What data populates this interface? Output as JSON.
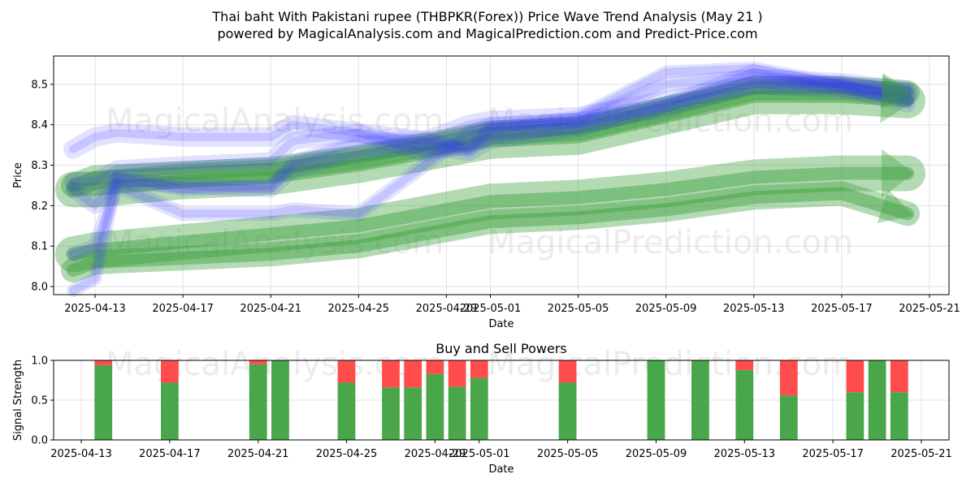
{
  "figure": {
    "title_line1": "Thai baht With Pakistani rupee (THBPKR(Forex)) Price Wave Trend Analysis (May 21 )",
    "title_line2": "powered by MagicalAnalysis.com and MagicalPrediction.com and Predict-Price.com",
    "watermarks": [
      "MagicalAnalysis.com",
      "MagicalPrediction.com"
    ]
  },
  "colors": {
    "bull": "#4aa64a",
    "bear": "#ff4d4d",
    "wave_blue": "#3333ff",
    "wave_green": "#3a9e3a"
  },
  "chart_data": [
    {
      "type": "line",
      "xlabel": "Date",
      "ylabel": "Price",
      "ylim": [
        7.98,
        8.57
      ],
      "xlim": [
        "2025-04-11",
        "2025-05-21"
      ],
      "yticks": [
        "8.0",
        "8.1",
        "8.2",
        "8.3",
        "8.4",
        "8.5"
      ],
      "xticks": [
        "2025-04-13",
        "2025-04-17",
        "2025-04-21",
        "2025-04-25",
        "2025-04-29",
        "2025-05-01",
        "2025-05-05",
        "2025-05-09",
        "2025-05-13",
        "2025-05-17",
        "2025-05-21"
      ],
      "grid": true,
      "series": [
        {
          "kind": "blue_wave",
          "points": [
            [
              "2025-04-12",
              8.34
            ],
            [
              "2025-04-13",
              8.37
            ],
            [
              "2025-04-14",
              8.38
            ],
            [
              "2025-04-17",
              8.37
            ],
            [
              "2025-04-21",
              8.37
            ],
            [
              "2025-04-22",
              8.4
            ],
            [
              "2025-04-25",
              8.38
            ],
            [
              "2025-04-28",
              8.36
            ],
            [
              "2025-04-30",
              8.4
            ],
            [
              "2025-05-01",
              8.41
            ],
            [
              "2025-05-05",
              8.42
            ],
            [
              "2025-05-09",
              8.46
            ],
            [
              "2025-05-13",
              8.5
            ],
            [
              "2025-05-17",
              8.49
            ],
            [
              "2025-05-20",
              8.48
            ]
          ]
        },
        {
          "kind": "blue_wave",
          "points": [
            [
              "2025-04-12",
              8.26
            ],
            [
              "2025-04-13",
              8.26
            ],
            [
              "2025-04-14",
              8.29
            ],
            [
              "2025-04-17",
              8.3
            ],
            [
              "2025-04-21",
              8.31
            ],
            [
              "2025-04-22",
              8.36
            ],
            [
              "2025-04-25",
              8.38
            ],
            [
              "2025-04-28",
              8.33
            ],
            [
              "2025-04-30",
              8.35
            ],
            [
              "2025-05-01",
              8.38
            ],
            [
              "2025-05-05",
              8.4
            ],
            [
              "2025-05-09",
              8.44
            ],
            [
              "2025-05-13",
              8.5
            ],
            [
              "2025-05-17",
              8.5
            ],
            [
              "2025-05-20",
              8.47
            ]
          ]
        },
        {
          "kind": "blue_wave",
          "points": [
            [
              "2025-04-12",
              8.24
            ],
            [
              "2025-04-13",
              8.2
            ],
            [
              "2025-04-14",
              8.26
            ],
            [
              "2025-04-17",
              8.25
            ],
            [
              "2025-04-21",
              8.24
            ],
            [
              "2025-04-22",
              8.29
            ],
            [
              "2025-04-25",
              8.33
            ],
            [
              "2025-04-28",
              8.35
            ],
            [
              "2025-04-30",
              8.33
            ],
            [
              "2025-05-01",
              8.36
            ],
            [
              "2025-05-05",
              8.39
            ],
            [
              "2025-05-09",
              8.45
            ],
            [
              "2025-05-13",
              8.53
            ],
            [
              "2025-05-17",
              8.49
            ],
            [
              "2025-05-20",
              8.45
            ]
          ]
        },
        {
          "kind": "blue_wave",
          "points": [
            [
              "2025-04-12",
              8.08
            ],
            [
              "2025-04-13",
              8.1
            ],
            [
              "2025-04-14",
              8.25
            ],
            [
              "2025-04-17",
              8.18
            ],
            [
              "2025-04-21",
              8.18
            ],
            [
              "2025-04-22",
              8.19
            ],
            [
              "2025-04-25",
              8.18
            ],
            [
              "2025-04-28",
              8.3
            ],
            [
              "2025-04-30",
              8.38
            ],
            [
              "2025-05-01",
              8.4
            ],
            [
              "2025-05-05",
              8.41
            ],
            [
              "2025-05-09",
              8.5
            ],
            [
              "2025-05-13",
              8.52
            ],
            [
              "2025-05-17",
              8.51
            ],
            [
              "2025-05-20",
              8.49
            ]
          ]
        },
        {
          "kind": "blue_wave",
          "points": [
            [
              "2025-04-12",
              7.99
            ],
            [
              "2025-04-13",
              8.02
            ],
            [
              "2025-04-14",
              8.27
            ],
            [
              "2025-04-17",
              8.24
            ],
            [
              "2025-04-21",
              8.25
            ],
            [
              "2025-04-22",
              8.31
            ],
            [
              "2025-04-25",
              8.36
            ],
            [
              "2025-04-28",
              8.37
            ],
            [
              "2025-04-30",
              8.34
            ],
            [
              "2025-05-01",
              8.39
            ],
            [
              "2025-05-05",
              8.42
            ],
            [
              "2025-05-09",
              8.53
            ],
            [
              "2025-05-13",
              8.54
            ],
            [
              "2025-05-17",
              8.5
            ],
            [
              "2025-05-20",
              8.46
            ]
          ]
        },
        {
          "kind": "green_band",
          "points": [
            [
              "2025-04-12",
              8.24
            ],
            [
              "2025-04-13",
              8.24
            ],
            [
              "2025-04-17",
              8.26
            ],
            [
              "2025-04-21",
              8.27
            ],
            [
              "2025-04-25",
              8.3
            ],
            [
              "2025-04-29",
              8.34
            ],
            [
              "2025-05-01",
              8.36
            ],
            [
              "2025-05-05",
              8.37
            ],
            [
              "2025-05-09",
              8.42
            ],
            [
              "2025-05-13",
              8.47
            ],
            [
              "2025-05-17",
              8.47
            ],
            [
              "2025-05-20",
              8.46
            ]
          ]
        },
        {
          "kind": "green_band",
          "points": [
            [
              "2025-04-12",
              8.25
            ],
            [
              "2025-04-13",
              8.27
            ],
            [
              "2025-04-17",
              8.28
            ],
            [
              "2025-04-21",
              8.29
            ],
            [
              "2025-04-25",
              8.32
            ],
            [
              "2025-04-29",
              8.36
            ],
            [
              "2025-05-01",
              8.38
            ],
            [
              "2025-05-05",
              8.39
            ],
            [
              "2025-05-09",
              8.44
            ],
            [
              "2025-05-13",
              8.49
            ],
            [
              "2025-05-17",
              8.49
            ],
            [
              "2025-05-20",
              8.48
            ]
          ]
        },
        {
          "kind": "green_band",
          "points": [
            [
              "2025-04-12",
              8.08
            ],
            [
              "2025-04-13",
              8.09
            ],
            [
              "2025-04-17",
              8.11
            ],
            [
              "2025-04-21",
              8.13
            ],
            [
              "2025-04-25",
              8.15
            ],
            [
              "2025-04-29",
              8.19
            ],
            [
              "2025-05-01",
              8.21
            ],
            [
              "2025-05-05",
              8.22
            ],
            [
              "2025-05-09",
              8.24
            ],
            [
              "2025-05-13",
              8.27
            ],
            [
              "2025-05-17",
              8.28
            ],
            [
              "2025-05-20",
              8.28
            ]
          ]
        },
        {
          "kind": "green_band",
          "points": [
            [
              "2025-04-12",
              8.04
            ],
            [
              "2025-04-13",
              8.06
            ],
            [
              "2025-04-17",
              8.07
            ],
            [
              "2025-04-21",
              8.08
            ],
            [
              "2025-04-25",
              8.1
            ],
            [
              "2025-04-29",
              8.14
            ],
            [
              "2025-05-01",
              8.16
            ],
            [
              "2025-05-05",
              8.17
            ],
            [
              "2025-05-09",
              8.19
            ],
            [
              "2025-05-13",
              8.22
            ],
            [
              "2025-05-17",
              8.23
            ],
            [
              "2025-05-20",
              8.18
            ]
          ]
        }
      ]
    },
    {
      "type": "bar",
      "title": "Buy and Sell Powers",
      "xlabel": "Date",
      "ylabel": "Signal Strength",
      "ylim": [
        0,
        1
      ],
      "yticks": [
        "0.0",
        "0.5",
        "1.0"
      ],
      "xticks": [
        "2025-04-13",
        "2025-04-17",
        "2025-04-21",
        "2025-04-25",
        "2025-04-29",
        "2025-05-01",
        "2025-05-05",
        "2025-05-09",
        "2025-05-13",
        "2025-05-17",
        "2025-05-21"
      ],
      "grid": true,
      "bars": [
        {
          "date": "2025-04-14",
          "buy": 0.94,
          "sell": 0.06
        },
        {
          "date": "2025-04-17",
          "buy": 0.72,
          "sell": 0.28
        },
        {
          "date": "2025-04-21",
          "buy": 0.95,
          "sell": 0.05
        },
        {
          "date": "2025-04-22",
          "buy": 1.0,
          "sell": 0.0
        },
        {
          "date": "2025-04-25",
          "buy": 0.72,
          "sell": 0.28
        },
        {
          "date": "2025-04-27",
          "buy": 0.66,
          "sell": 0.34
        },
        {
          "date": "2025-04-28",
          "buy": 0.66,
          "sell": 0.34
        },
        {
          "date": "2025-04-29",
          "buy": 0.83,
          "sell": 0.17
        },
        {
          "date": "2025-04-30",
          "buy": 0.67,
          "sell": 0.33
        },
        {
          "date": "2025-05-01",
          "buy": 0.78,
          "sell": 0.22
        },
        {
          "date": "2025-05-05",
          "buy": 0.72,
          "sell": 0.28
        },
        {
          "date": "2025-05-09",
          "buy": 1.0,
          "sell": 0.0
        },
        {
          "date": "2025-05-11",
          "buy": 1.0,
          "sell": 0.0
        },
        {
          "date": "2025-05-13",
          "buy": 0.88,
          "sell": 0.12
        },
        {
          "date": "2025-05-15",
          "buy": 0.56,
          "sell": 0.44
        },
        {
          "date": "2025-05-18",
          "buy": 0.6,
          "sell": 0.4
        },
        {
          "date": "2025-05-19",
          "buy": 1.0,
          "sell": 0.0
        },
        {
          "date": "2025-05-20",
          "buy": 0.6,
          "sell": 0.4
        }
      ]
    }
  ]
}
